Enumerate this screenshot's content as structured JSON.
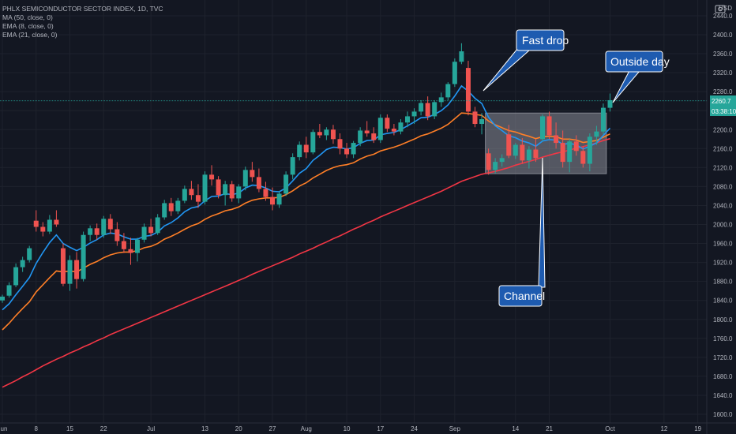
{
  "legend": {
    "symbol": "PHLX SEMICONDUCTOR SECTOR INDEX, 1D, TVC",
    "ma50": "MA (50, close, 0)",
    "ema8": "EMA (8, close, 0)",
    "ema21": "EMA (21, close, 0)"
  },
  "currency": "USD",
  "last_price": {
    "label": "2260.7",
    "value": 2260.7,
    "countdown": "03:38:10"
  },
  "annotations": [
    {
      "text": "Fast drop"
    },
    {
      "text": "Outside day"
    },
    {
      "text": "Channel"
    }
  ],
  "colors": {
    "background": "#131722",
    "grid": "#1e222d",
    "up": "#26a69a",
    "down": "#ef5350",
    "ema8": "#2196f3",
    "ema21": "#ff7f27",
    "ma50": "#f23645",
    "callout": "#1e5bb0",
    "channel_box": "#9598a1"
  },
  "chart_data": {
    "type": "candlestick",
    "y_ticks": [
      1600,
      1640,
      1680,
      1720,
      1760,
      1800,
      1840,
      1880,
      1920,
      1960,
      2000,
      2040,
      2080,
      2120,
      2160,
      2200,
      2240,
      2280,
      2320,
      2360,
      2400,
      2440
    ],
    "y_tick_labels": [
      "1600.0",
      "1640.0",
      "1680.0",
      "1720.0",
      "1760.0",
      "1800.0",
      "1840.0",
      "1880.0",
      "1920.0",
      "1960.0",
      "2000.0",
      "2040.0",
      "2080.0",
      "2120.0",
      "2160.0",
      "2200.0",
      "2240.0",
      "2280.0",
      "2320.0",
      "2360.0",
      "2400.0",
      "2440.0"
    ],
    "ylim": [
      1595,
      2460
    ],
    "x_ticks": [
      {
        "label": "Jun",
        "bar": 0
      },
      {
        "label": "8",
        "bar": 5
      },
      {
        "label": "15",
        "bar": 10
      },
      {
        "label": "22",
        "bar": 15
      },
      {
        "label": "Jul",
        "bar": 22
      },
      {
        "label": "13",
        "bar": 30
      },
      {
        "label": "20",
        "bar": 35
      },
      {
        "label": "27",
        "bar": 40
      },
      {
        "label": "Aug",
        "bar": 45
      },
      {
        "label": "10",
        "bar": 51
      },
      {
        "label": "17",
        "bar": 56
      },
      {
        "label": "24",
        "bar": 61
      },
      {
        "label": "Sep",
        "bar": 67
      },
      {
        "label": "14",
        "bar": 76
      },
      {
        "label": "21",
        "bar": 81
      },
      {
        "label": "Oct",
        "bar": 90
      },
      {
        "label": "12",
        "bar": 98
      },
      {
        "label": "19",
        "bar": 103
      }
    ],
    "candles": [
      [
        1840,
        1852,
        1835,
        1848
      ],
      [
        1850,
        1878,
        1846,
        1872
      ],
      [
        1872,
        1918,
        1868,
        1910
      ],
      [
        1910,
        1932,
        1900,
        1925
      ],
      [
        1925,
        1955,
        1920,
        1950
      ],
      [
        2008,
        2030,
        1985,
        1995
      ],
      [
        1995,
        2005,
        1975,
        1985
      ],
      [
        1985,
        2020,
        1980,
        2010
      ],
      [
        2010,
        2030,
        1995,
        2000
      ],
      [
        1950,
        1960,
        1870,
        1875
      ],
      [
        1875,
        1935,
        1860,
        1925
      ],
      [
        1925,
        1942,
        1865,
        1885
      ],
      [
        1885,
        1985,
        1880,
        1978
      ],
      [
        1978,
        1998,
        1965,
        1992
      ],
      [
        1992,
        2002,
        1968,
        1978
      ],
      [
        1978,
        2018,
        1972,
        2012
      ],
      [
        2012,
        2022,
        1980,
        1990
      ],
      [
        1990,
        2005,
        1955,
        1965
      ],
      [
        1965,
        1982,
        1940,
        1948
      ],
      [
        1948,
        1972,
        1915,
        1940
      ],
      [
        1940,
        1972,
        1922,
        1968
      ],
      [
        1968,
        2002,
        1962,
        1995
      ],
      [
        1995,
        2012,
        1975,
        1982
      ],
      [
        1982,
        2022,
        1978,
        2015
      ],
      [
        2015,
        2052,
        2010,
        2045
      ],
      [
        2045,
        2056,
        2018,
        2028
      ],
      [
        2028,
        2056,
        2022,
        2050
      ],
      [
        2050,
        2082,
        2045,
        2075
      ],
      [
        2075,
        2092,
        2052,
        2062
      ],
      [
        2062,
        2085,
        2035,
        2048
      ],
      [
        2048,
        2112,
        2042,
        2105
      ],
      [
        2105,
        2125,
        2082,
        2095
      ],
      [
        2095,
        2102,
        2055,
        2062
      ],
      [
        2062,
        2092,
        2040,
        2085
      ],
      [
        2085,
        2092,
        2048,
        2055
      ],
      [
        2055,
        2085,
        2045,
        2080
      ],
      [
        2080,
        2122,
        2072,
        2115
      ],
      [
        2115,
        2132,
        2090,
        2100
      ],
      [
        2100,
        2118,
        2068,
        2075
      ],
      [
        2075,
        2090,
        2050,
        2058
      ],
      [
        2058,
        2078,
        2030,
        2042
      ],
      [
        2042,
        2070,
        2035,
        2065
      ],
      [
        2065,
        2112,
        2060,
        2105
      ],
      [
        2105,
        2150,
        2095,
        2142
      ],
      [
        2142,
        2175,
        2135,
        2168
      ],
      [
        2168,
        2185,
        2140,
        2152
      ],
      [
        2152,
        2200,
        2148,
        2195
      ],
      [
        2195,
        2212,
        2182,
        2188
      ],
      [
        2188,
        2205,
        2178,
        2200
      ],
      [
        2200,
        2210,
        2170,
        2180
      ],
      [
        2180,
        2192,
        2148,
        2160
      ],
      [
        2160,
        2172,
        2140,
        2148
      ],
      [
        2148,
        2176,
        2140,
        2172
      ],
      [
        2172,
        2205,
        2165,
        2198
      ],
      [
        2198,
        2218,
        2185,
        2192
      ],
      [
        2192,
        2205,
        2172,
        2178
      ],
      [
        2178,
        2232,
        2172,
        2225
      ],
      [
        2225,
        2232,
        2195,
        2202
      ],
      [
        2202,
        2212,
        2188,
        2196
      ],
      [
        2196,
        2222,
        2190,
        2215
      ],
      [
        2215,
        2238,
        2205,
        2228
      ],
      [
        2228,
        2245,
        2212,
        2238
      ],
      [
        2238,
        2262,
        2230,
        2256
      ],
      [
        2256,
        2270,
        2220,
        2228
      ],
      [
        2228,
        2262,
        2222,
        2258
      ],
      [
        2258,
        2278,
        2248,
        2268
      ],
      [
        2268,
        2300,
        2262,
        2296
      ],
      [
        2296,
        2350,
        2290,
        2343
      ],
      [
        2343,
        2382,
        2338,
        2365
      ],
      [
        2330,
        2345,
        2230,
        2238
      ],
      [
        2238,
        2248,
        2205,
        2212
      ],
      [
        2212,
        2235,
        2190,
        2222
      ],
      [
        2150,
        2160,
        2105,
        2115
      ],
      [
        2115,
        2140,
        2108,
        2132
      ],
      [
        2132,
        2148,
        2122,
        2140
      ],
      [
        2190,
        2210,
        2140,
        2145
      ],
      [
        2145,
        2172,
        2138,
        2168
      ],
      [
        2168,
        2182,
        2128,
        2135
      ],
      [
        2135,
        2165,
        2118,
        2158
      ],
      [
        2158,
        2180,
        2132,
        2140
      ],
      [
        2180,
        2232,
        2175,
        2228
      ],
      [
        2228,
        2238,
        2180,
        2188
      ],
      [
        2188,
        2215,
        2160,
        2172
      ],
      [
        2172,
        2198,
        2120,
        2132
      ],
      [
        2132,
        2180,
        2110,
        2175
      ],
      [
        2175,
        2188,
        2145,
        2155
      ],
      [
        2155,
        2165,
        2120,
        2128
      ],
      [
        2128,
        2192,
        2112,
        2185
      ],
      [
        2185,
        2208,
        2168,
        2196
      ],
      [
        2196,
        2255,
        2190,
        2246
      ],
      [
        2246,
        2276,
        2238,
        2262
      ]
    ],
    "ema8": [
      1820,
      1833,
      1852,
      1870,
      1888,
      1918,
      1941,
      1962,
      1978,
      1960,
      1952,
      1945,
      1952,
      1961,
      1968,
      1978,
      1982,
      1980,
      1974,
      1969,
      1969,
      1975,
      1977,
      1984,
      1997,
      2004,
      2014,
      2027,
      2035,
      2038,
      2050,
      2059,
      2060,
      2065,
      2063,
      2066,
      2077,
      2083,
      2082,
      2077,
      2070,
      2069,
      2077,
      2092,
      2108,
      2118,
      2135,
      2146,
      2158,
      2163,
      2162,
      2159,
      2162,
      2171,
      2177,
      2178,
      2189,
      2192,
      2194,
      2200,
      2208,
      2216,
      2225,
      2226,
      2232,
      2240,
      2252,
      2271,
      2292,
      2281,
      2266,
      2255,
      2226,
      2208,
      2198,
      2187,
      2183,
      2176,
      2172,
      2165,
      2176,
      2179,
      2178,
      2169,
      2171,
      2168,
      2159,
      2165,
      2172,
      2188,
      2203
    ],
    "ema21": [
      1778,
      1792,
      1808,
      1823,
      1837,
      1858,
      1873,
      1888,
      1902,
      1900,
      1902,
      1900,
      1908,
      1916,
      1922,
      1930,
      1936,
      1940,
      1942,
      1942,
      1945,
      1951,
      1954,
      1960,
      1969,
      1975,
      1982,
      1990,
      1997,
      2002,
      2011,
      2018,
      2023,
      2029,
      2032,
      2037,
      2045,
      2051,
      2054,
      2056,
      2056,
      2057,
      2063,
      2071,
      2081,
      2088,
      2098,
      2106,
      2114,
      2120,
      2124,
      2126,
      2130,
      2138,
      2144,
      2148,
      2155,
      2159,
      2163,
      2168,
      2174,
      2180,
      2187,
      2191,
      2197,
      2203,
      2211,
      2223,
      2235,
      2234,
      2232,
      2230,
      2218,
      2210,
      2204,
      2198,
      2195,
      2190,
      2186,
      2181,
      2185,
      2186,
      2185,
      2180,
      2180,
      2178,
      2173,
      2175,
      2177,
      2184,
      2191
    ],
    "ma50": [
      1657,
      1664,
      1671,
      1679,
      1686,
      1694,
      1702,
      1709,
      1716,
      1722,
      1729,
      1735,
      1742,
      1748,
      1755,
      1761,
      1768,
      1774,
      1780,
      1786,
      1792,
      1798,
      1804,
      1810,
      1816,
      1822,
      1828,
      1834,
      1840,
      1846,
      1852,
      1858,
      1864,
      1870,
      1876,
      1882,
      1888,
      1895,
      1901,
      1907,
      1913,
      1919,
      1925,
      1931,
      1938,
      1944,
      1950,
      1957,
      1963,
      1970,
      1976,
      1983,
      1990,
      1996,
      2003,
      2009,
      2016,
      2022,
      2028,
      2034,
      2040,
      2046,
      2052,
      2058,
      2064,
      2070,
      2077,
      2084,
      2091,
      2096,
      2101,
      2106,
      2109,
      2112,
      2116,
      2120,
      2125,
      2129,
      2133,
      2137,
      2142,
      2146,
      2150,
      2153,
      2157,
      2161,
      2164,
      2168,
      2172,
      2177,
      2181
    ]
  }
}
